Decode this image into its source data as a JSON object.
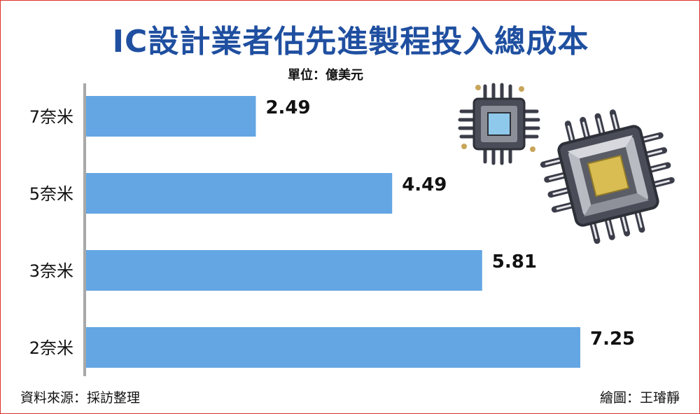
{
  "title": "IC設計業者估先進製程投入總成本",
  "unit": "單位：億美元",
  "source": "資料來源：採訪整理",
  "credit": "繪圖：王璿靜",
  "colors": {
    "title": "#1f4fa0",
    "bar": "#63a6e3",
    "frame": "#d9302b"
  },
  "icons": [
    "small-chip-icon",
    "large-chip-icon"
  ],
  "chart_data": {
    "type": "bar",
    "orientation": "horizontal",
    "categories": [
      "7奈米",
      "5奈米",
      "3奈米",
      "2奈米"
    ],
    "values": [
      2.49,
      4.49,
      5.81,
      7.25
    ],
    "value_labels": [
      "2.49",
      "4.49",
      "5.81",
      "7.25"
    ],
    "title": "IC設計業者估先進製程投入總成本",
    "xlabel": "",
    "ylabel": "",
    "xlim": [
      0,
      7.25
    ],
    "grid": false,
    "legend": "none"
  }
}
